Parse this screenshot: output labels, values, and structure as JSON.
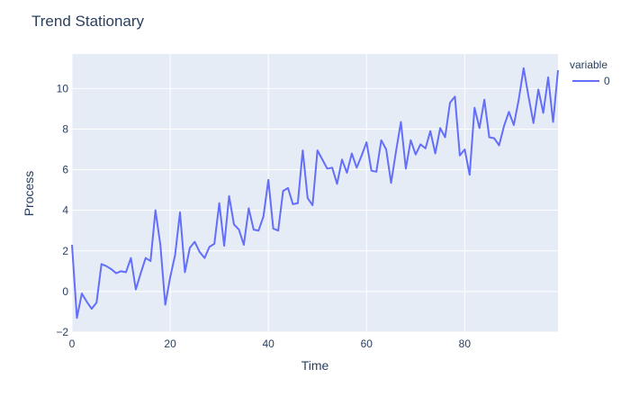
{
  "chart_data": {
    "type": "line",
    "title": "Trend Stationary",
    "xlabel": "Time",
    "ylabel": "Process",
    "xlim": [
      0,
      99
    ],
    "ylim": [
      -2,
      11.7
    ],
    "x_ticks": [
      0,
      20,
      40,
      60,
      80
    ],
    "y_ticks": [
      -2,
      0,
      2,
      4,
      6,
      8,
      10
    ],
    "grid": true,
    "legend": {
      "title": "variable",
      "position": "top-right"
    },
    "colors": {
      "plot_bg": "#e5ecf6",
      "grid": "#ffffff",
      "series": "#636efa",
      "text": "#2a3f5f"
    },
    "series": [
      {
        "name": "0",
        "x": [
          0,
          1,
          2,
          3,
          4,
          5,
          6,
          7,
          8,
          9,
          10,
          11,
          12,
          13,
          14,
          15,
          16,
          17,
          18,
          19,
          20,
          21,
          22,
          23,
          24,
          25,
          26,
          27,
          28,
          29,
          30,
          31,
          32,
          33,
          34,
          35,
          36,
          37,
          38,
          39,
          40,
          41,
          42,
          43,
          44,
          45,
          46,
          47,
          48,
          49,
          50,
          51,
          52,
          53,
          54,
          55,
          56,
          57,
          58,
          59,
          60,
          61,
          62,
          63,
          64,
          65,
          66,
          67,
          68,
          69,
          70,
          71,
          72,
          73,
          74,
          75,
          76,
          77,
          78,
          79,
          80,
          81,
          82,
          83,
          84,
          85,
          86,
          87,
          88,
          89,
          90,
          91,
          92,
          93,
          94,
          95,
          96,
          97,
          98,
          99
        ],
        "values": [
          2.3,
          -1.3,
          -0.1,
          -0.5,
          -0.85,
          -0.55,
          1.35,
          1.25,
          1.1,
          0.9,
          1.0,
          0.95,
          1.65,
          0.1,
          0.9,
          1.65,
          1.5,
          4.0,
          2.3,
          -0.65,
          0.7,
          1.8,
          3.9,
          0.95,
          2.15,
          2.45,
          1.95,
          1.65,
          2.2,
          2.35,
          4.35,
          2.25,
          4.7,
          3.3,
          3.05,
          2.3,
          4.1,
          3.05,
          3.0,
          3.7,
          5.5,
          3.1,
          3.0,
          4.95,
          5.1,
          4.3,
          4.35,
          6.95,
          4.6,
          4.25,
          6.95,
          6.5,
          6.05,
          6.1,
          5.3,
          6.5,
          5.85,
          6.8,
          6.1,
          6.7,
          7.35,
          5.95,
          5.9,
          7.45,
          7.0,
          5.35,
          6.9,
          8.35,
          6.05,
          7.45,
          6.75,
          7.25,
          7.05,
          7.9,
          6.8,
          8.05,
          7.6,
          9.3,
          9.6,
          6.7,
          7.0,
          5.75,
          9.05,
          8.05,
          9.45,
          7.6,
          7.55,
          7.2,
          8.15,
          8.85,
          8.2,
          9.45,
          11.0,
          9.6,
          8.3,
          9.95,
          8.8,
          10.55,
          8.35,
          10.9
        ]
      }
    ]
  }
}
